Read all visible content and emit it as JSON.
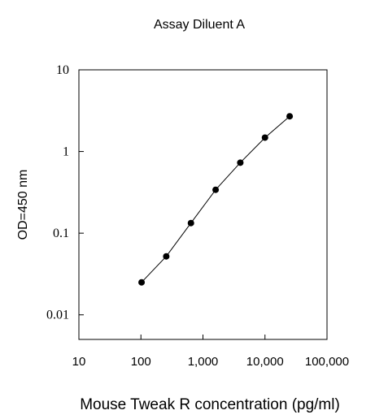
{
  "chart_data": {
    "type": "line",
    "title": "Assay Diluent A",
    "xlabel": "Mouse Tweak R concentration (pg/ml)",
    "ylabel": "OD=450 nm",
    "x_scale": "log",
    "y_scale": "log",
    "xlim": [
      10,
      100000
    ],
    "ylim": [
      0.005,
      10
    ],
    "xticks": [
      {
        "value": 10,
        "label": "10"
      },
      {
        "value": 100,
        "label": "100"
      },
      {
        "value": 1000,
        "label": "1,000"
      },
      {
        "value": 10000,
        "label": "10,000"
      },
      {
        "value": 100000,
        "label": "100,000"
      }
    ],
    "yticks": [
      {
        "value": 0.01,
        "label": "0.01"
      },
      {
        "value": 0.1,
        "label": "0.1"
      },
      {
        "value": 1,
        "label": "1"
      },
      {
        "value": 10,
        "label": "10"
      }
    ],
    "grid": false,
    "legend": "none",
    "series": [
      {
        "x": [
          102.4,
          256,
          640,
          1600,
          4000,
          10000,
          25000
        ],
        "y": [
          0.025,
          0.052,
          0.133,
          0.34,
          0.73,
          1.48,
          2.7
        ],
        "color": "#000000",
        "marker": "circle"
      }
    ]
  }
}
